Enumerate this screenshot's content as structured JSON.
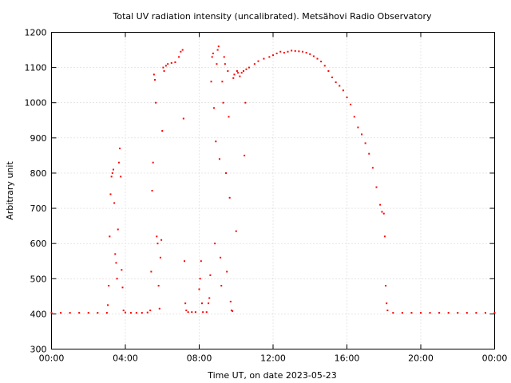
{
  "chart_data": {
    "type": "scatter",
    "title": "Total UV radiation intensity (uncalibrated). Metsähovi Radio Observatory",
    "xlabel": "Time UT, on date 2023-05-23",
    "ylabel": "Arbitrary unit",
    "xlim": [
      0,
      24
    ],
    "ylim": [
      300,
      1200
    ],
    "x_ticks": [
      {
        "value": 0,
        "label": "00:00"
      },
      {
        "value": 4,
        "label": "04:00"
      },
      {
        "value": 8,
        "label": "08:00"
      },
      {
        "value": 12,
        "label": "12:00"
      },
      {
        "value": 16,
        "label": "16:00"
      },
      {
        "value": 20,
        "label": "20:00"
      },
      {
        "value": 24,
        "label": "00:00"
      }
    ],
    "y_ticks": [
      300,
      400,
      500,
      600,
      700,
      800,
      900,
      1000,
      1100,
      1200
    ],
    "grid": true,
    "marker_color": "#ff0000",
    "series": [
      {
        "points": [
          [
            0.0,
            403
          ],
          [
            0.5,
            403
          ],
          [
            1.0,
            403
          ],
          [
            1.5,
            403
          ],
          [
            2.0,
            403
          ],
          [
            2.5,
            403
          ],
          [
            3.0,
            403
          ],
          [
            3.05,
            425
          ],
          [
            3.1,
            480
          ],
          [
            3.15,
            620
          ],
          [
            3.2,
            740
          ],
          [
            3.25,
            790
          ],
          [
            3.3,
            800
          ],
          [
            3.35,
            810
          ],
          [
            3.4,
            715
          ],
          [
            3.45,
            570
          ],
          [
            3.5,
            545
          ],
          [
            3.55,
            500
          ],
          [
            3.6,
            640
          ],
          [
            3.65,
            830
          ],
          [
            3.7,
            870
          ],
          [
            3.75,
            790
          ],
          [
            3.8,
            525
          ],
          [
            3.85,
            475
          ],
          [
            3.9,
            410
          ],
          [
            4.0,
            404
          ],
          [
            4.3,
            403
          ],
          [
            4.6,
            403
          ],
          [
            4.9,
            403
          ],
          [
            5.2,
            404
          ],
          [
            5.35,
            410
          ],
          [
            5.4,
            520
          ],
          [
            5.45,
            750
          ],
          [
            5.5,
            830
          ],
          [
            5.55,
            1080
          ],
          [
            5.6,
            1065
          ],
          [
            5.65,
            1000
          ],
          [
            5.7,
            620
          ],
          [
            5.75,
            600
          ],
          [
            5.8,
            480
          ],
          [
            5.85,
            415
          ],
          [
            5.9,
            560
          ],
          [
            5.95,
            610
          ],
          [
            6.0,
            920
          ],
          [
            6.05,
            1100
          ],
          [
            6.1,
            1090
          ],
          [
            6.2,
            1105
          ],
          [
            6.3,
            1110
          ],
          [
            6.5,
            1113
          ],
          [
            6.7,
            1115
          ],
          [
            6.9,
            1130
          ],
          [
            7.0,
            1145
          ],
          [
            7.1,
            1150
          ],
          [
            7.15,
            955
          ],
          [
            7.2,
            550
          ],
          [
            7.25,
            430
          ],
          [
            7.3,
            410
          ],
          [
            7.4,
            405
          ],
          [
            7.6,
            405
          ],
          [
            7.8,
            405
          ],
          [
            8.0,
            470
          ],
          [
            8.05,
            500
          ],
          [
            8.1,
            550
          ],
          [
            8.15,
            430
          ],
          [
            8.2,
            405
          ],
          [
            8.4,
            405
          ],
          [
            8.5,
            430
          ],
          [
            8.55,
            445
          ],
          [
            8.6,
            510
          ],
          [
            8.65,
            1060
          ],
          [
            8.7,
            1130
          ],
          [
            8.75,
            1140
          ],
          [
            8.8,
            985
          ],
          [
            8.85,
            600
          ],
          [
            8.9,
            890
          ],
          [
            8.95,
            1110
          ],
          [
            9.0,
            1150
          ],
          [
            9.05,
            1160
          ],
          [
            9.1,
            840
          ],
          [
            9.15,
            560
          ],
          [
            9.2,
            480
          ],
          [
            9.25,
            1060
          ],
          [
            9.3,
            1000
          ],
          [
            9.35,
            1130
          ],
          [
            9.4,
            1110
          ],
          [
            9.45,
            800
          ],
          [
            9.5,
            520
          ],
          [
            9.55,
            1090
          ],
          [
            9.6,
            960
          ],
          [
            9.65,
            730
          ],
          [
            9.7,
            435
          ],
          [
            9.75,
            410
          ],
          [
            9.8,
            408
          ],
          [
            9.85,
            1070
          ],
          [
            9.9,
            1080
          ],
          [
            10.0,
            635
          ],
          [
            10.05,
            1090
          ],
          [
            10.1,
            1085
          ],
          [
            10.2,
            1075
          ],
          [
            10.3,
            1085
          ],
          [
            10.4,
            1090
          ],
          [
            10.45,
            850
          ],
          [
            10.5,
            1000
          ],
          [
            10.55,
            1095
          ],
          [
            10.7,
            1100
          ],
          [
            11.0,
            1110
          ],
          [
            11.2,
            1118
          ],
          [
            11.5,
            1125
          ],
          [
            11.8,
            1130
          ],
          [
            12.0,
            1135
          ],
          [
            12.2,
            1140
          ],
          [
            12.4,
            1145
          ],
          [
            12.6,
            1142
          ],
          [
            12.8,
            1145
          ],
          [
            13.0,
            1148
          ],
          [
            13.2,
            1147
          ],
          [
            13.4,
            1146
          ],
          [
            13.6,
            1145
          ],
          [
            13.8,
            1142
          ],
          [
            14.0,
            1138
          ],
          [
            14.2,
            1132
          ],
          [
            14.4,
            1125
          ],
          [
            14.6,
            1117
          ],
          [
            14.8,
            1105
          ],
          [
            15.0,
            1090
          ],
          [
            15.2,
            1072
          ],
          [
            15.4,
            1058
          ],
          [
            15.6,
            1048
          ],
          [
            15.8,
            1035
          ],
          [
            16.0,
            1015
          ],
          [
            16.2,
            995
          ],
          [
            16.4,
            960
          ],
          [
            16.6,
            930
          ],
          [
            16.8,
            910
          ],
          [
            17.0,
            885
          ],
          [
            17.2,
            855
          ],
          [
            17.4,
            815
          ],
          [
            17.6,
            760
          ],
          [
            17.8,
            710
          ],
          [
            17.9,
            690
          ],
          [
            18.0,
            685
          ],
          [
            18.05,
            620
          ],
          [
            18.1,
            480
          ],
          [
            18.15,
            430
          ],
          [
            18.2,
            410
          ],
          [
            18.5,
            403
          ],
          [
            19.0,
            403
          ],
          [
            19.5,
            403
          ],
          [
            20.0,
            403
          ],
          [
            20.5,
            403
          ],
          [
            21.0,
            403
          ],
          [
            21.5,
            403
          ],
          [
            22.0,
            403
          ],
          [
            22.5,
            403
          ],
          [
            23.0,
            403
          ],
          [
            23.5,
            403
          ],
          [
            24.0,
            403
          ]
        ]
      }
    ]
  }
}
